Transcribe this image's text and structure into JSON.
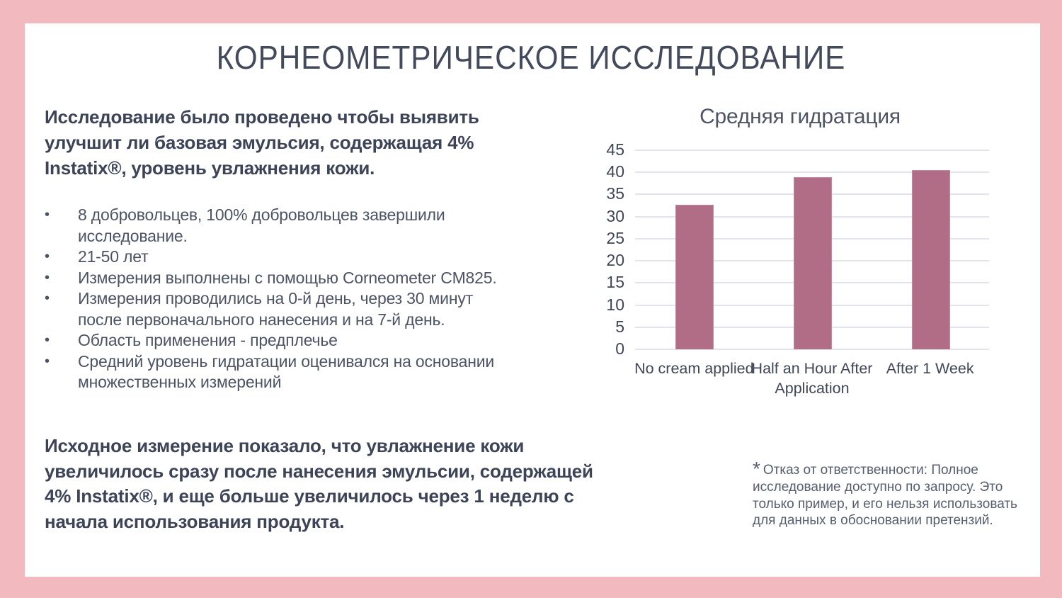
{
  "slide": {
    "title": "КОРНЕОМЕТРИЧЕСКОЕ ИССЛЕДОВАНИЕ",
    "intro": "Исследование было проведено чтобы выявить улучшит ли базовая эмульсия, содержащая 4% Instatix®, уровень увлажнения кожи.",
    "bullet_marker": "•",
    "bullets": [
      "8 добровольцев, 100% добровольцев завершили исследование.",
      "21-50 лет",
      "Измерения выполнены с помощью Corneometer CM825.",
      "Измерения проводились на 0-й день, через 30 минут после первоначального нанесения и на 7-й день.",
      "Область применения - предплечье",
      "Средний уровень гидратации оценивался на основании множественных измерений"
    ],
    "conclusion": "Исходное измерение показало, что увлажнение кожи увеличилось сразу после нанесения эмульсии, содержащей 4% Instatix®, и еще больше увеличилось через 1 неделю с начала использования продукта.",
    "disclaimer_mark": "*",
    "disclaimer": "Отказ от ответственности: Полное исследование доступно по запросу. Это только пример, и его нельзя использовать для данных в обосновании претензий."
  },
  "chart_data": {
    "type": "bar",
    "title": "Средняя гидратация",
    "categories": [
      "No cream applied",
      "Half an Hour After Application",
      "After 1 Week"
    ],
    "values": [
      32.5,
      38.7,
      40.4
    ],
    "xlabel": "",
    "ylabel": "",
    "ylim": [
      0,
      45
    ],
    "yticks": [
      0,
      5,
      10,
      15,
      20,
      25,
      30,
      35,
      40,
      45
    ],
    "grid": true,
    "legend": "none",
    "bar_color": "#b16d86",
    "gridline_color": "#e3e4eb"
  },
  "colors": {
    "frame_pink": "#f2b9be",
    "panel_white": "#ffffff",
    "heading_text": "#424a5c",
    "body_text": "#3d4458",
    "bullet_text": "#4c5364",
    "chart_text": "#3f4656",
    "bar_fill": "#b16d86",
    "gridline": "#e3e4eb",
    "disclaimer_text": "#565d6d"
  }
}
